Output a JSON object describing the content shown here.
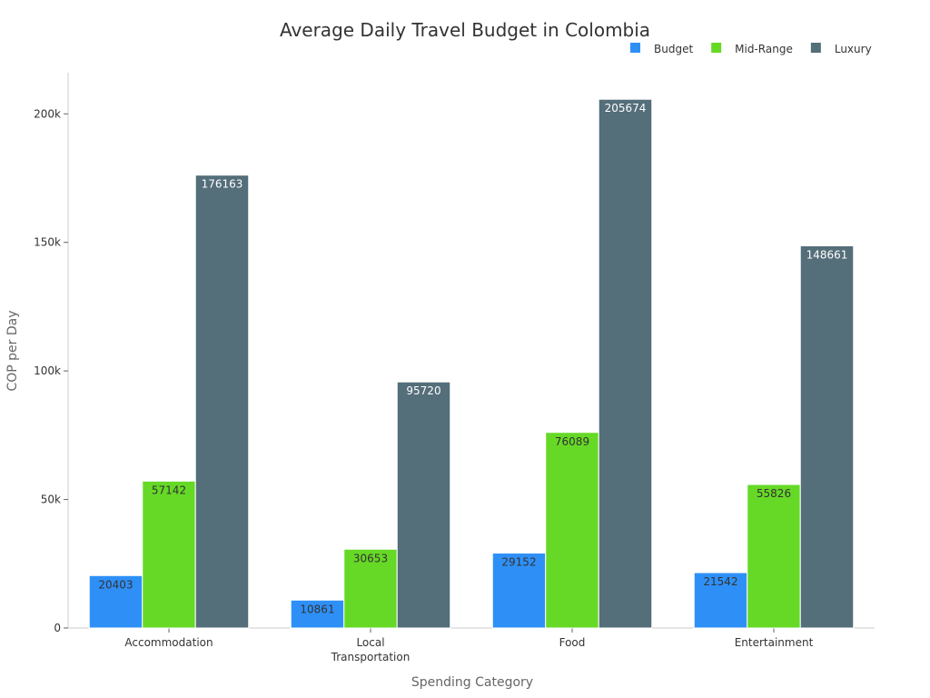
{
  "chart_data": {
    "type": "bar",
    "title": "Average Daily Travel Budget in Colombia",
    "xlabel": "Spending Category",
    "ylabel": "COP per Day",
    "categories": [
      [
        "Accommodation"
      ],
      [
        "Local",
        "Transportation"
      ],
      [
        "Food"
      ],
      [
        "Entertainment"
      ]
    ],
    "ylim": [
      0,
      216000
    ],
    "yticks": [
      0,
      50000,
      100000,
      150000,
      200000
    ],
    "ytick_labels": [
      "0",
      "50k",
      "100k",
      "150k",
      "200k"
    ],
    "grid": false,
    "legend": "top-right",
    "series": [
      {
        "name": "Budget",
        "color": "#2e90f7",
        "label_color": "#333333",
        "values": [
          20403,
          10861,
          29152,
          21542
        ]
      },
      {
        "name": "Mid-Range",
        "color": "#66d926",
        "label_color": "#333333",
        "values": [
          57142,
          30653,
          76089,
          55826
        ]
      },
      {
        "name": "Luxury",
        "color": "#546e7a",
        "label_color": "#ffffff",
        "values": [
          176163,
          95720,
          205674,
          148661
        ]
      }
    ]
  }
}
